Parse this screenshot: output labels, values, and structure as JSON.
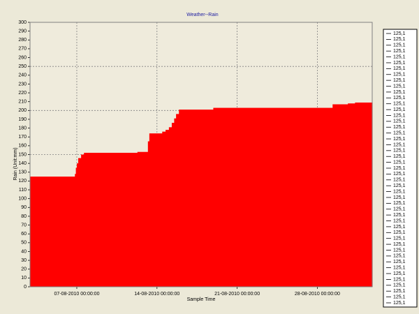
{
  "chart_data": {
    "type": "step-area",
    "title": "Weather--Rain",
    "x_label": "Sample Time",
    "y_label": "Rain (Unit:mm)",
    "color": "#ff0000",
    "x": [
      "02-08-2010 22:00:00",
      "06-08-2010 20:00:00",
      "06-08-2010 22:00:00",
      "07-08-2010 00:00:00",
      "07-08-2010 03:00:00",
      "07-08-2010 09:00:00",
      "07-08-2010 15:00:00",
      "12-08-2010 07:00:00",
      "13-08-2010 05:00:00",
      "13-08-2010 08:00:00",
      "14-08-2010 11:00:00",
      "14-08-2010 18:00:00",
      "15-08-2010 01:00:00",
      "15-08-2010 07:00:00",
      "15-08-2010 12:00:00",
      "15-08-2010 16:00:00",
      "15-08-2010 22:00:00",
      "18-08-2010 22:00:00",
      "29-08-2010 08:00:00",
      "30-08-2010 16:00:00",
      "31-08-2010 07:00:00"
    ],
    "values": [
      125,
      128,
      135,
      140,
      146,
      150,
      152,
      153,
      165,
      174,
      176,
      178,
      181,
      186,
      191,
      196,
      201,
      203,
      207,
      208,
      209
    ],
    "xlim": [
      "02-08-2010 22:00:00",
      "01-09-2010 19:00:00"
    ],
    "xticks": [
      "07-08-2010 00:00:00",
      "14-08-2010 00:00:00",
      "21-08-2010 00:00:00",
      "28-08-2010 00:00:00"
    ],
    "ylim": [
      0,
      300
    ],
    "yticks": [
      0,
      10,
      20,
      30,
      40,
      50,
      60,
      70,
      80,
      90,
      100,
      110,
      120,
      130,
      140,
      150,
      160,
      170,
      180,
      190,
      200,
      210,
      220,
      230,
      240,
      250,
      260,
      270,
      280,
      290,
      300
    ],
    "ygrid": [
      50,
      100,
      150,
      200,
      250
    ],
    "grid": true,
    "legend_position": "right",
    "legend_entries": [
      "125,1",
      "125,1",
      "125,1",
      "125,1",
      "125,1",
      "125,1",
      "125,1",
      "125,1",
      "125,1",
      "125,1",
      "125,1",
      "125,1",
      "125,1",
      "125,1",
      "125,1",
      "125,1",
      "125,1",
      "125,1",
      "125,1",
      "125,1",
      "125,1",
      "125,1",
      "125,1",
      "125,1",
      "125,1",
      "125,1",
      "125,1",
      "125,1",
      "125,1",
      "125,1",
      "125,1",
      "125,1",
      "125,1",
      "125,1",
      "125,1",
      "125,1",
      "125,1",
      "125,1",
      "125,1",
      "125,1",
      "125,1",
      "125,1",
      "125,1",
      "125,1",
      "125,1",
      "125,1",
      "125,1"
    ]
  }
}
